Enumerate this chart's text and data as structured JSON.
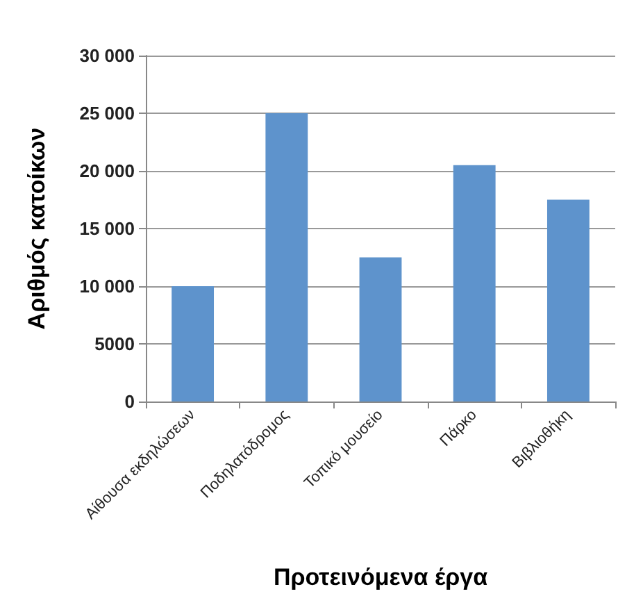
{
  "chart_data": {
    "type": "bar",
    "xlabel": "Προτεινόμενα έργα",
    "ylabel": "Αριθμός κατοίκων",
    "categories": [
      "Αίθουσα εκδηλώσεων",
      "Ποδηλατόδρομος",
      "Τοπικό μουσείο",
      "Πάρκο",
      "Βιβλιοθήκη"
    ],
    "values": [
      10000,
      25000,
      12500,
      20500,
      17500
    ],
    "color": "#5e93cc",
    "ylim": [
      0,
      30000
    ],
    "yticks": [
      0,
      5000,
      {
        "value": 10000,
        "label": "10 000"
      },
      {
        "value": 15000,
        "label": "15 000"
      },
      {
        "value": 20000,
        "label": "20 000"
      },
      {
        "value": 25000,
        "label": "25 000"
      },
      {
        "value": 30000,
        "label": "30 000"
      }
    ],
    "grid": "y"
  }
}
